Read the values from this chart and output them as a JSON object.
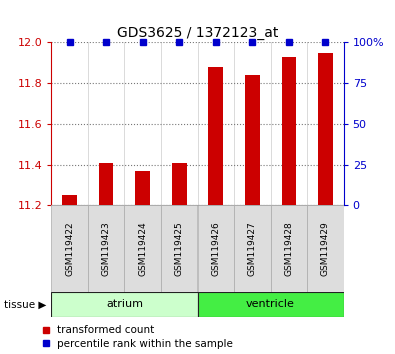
{
  "title": "GDS3625 / 1372123_at",
  "samples": [
    "GSM119422",
    "GSM119423",
    "GSM119424",
    "GSM119425",
    "GSM119426",
    "GSM119427",
    "GSM119428",
    "GSM119429"
  ],
  "red_values": [
    11.25,
    11.41,
    11.37,
    11.41,
    11.88,
    11.84,
    11.93,
    11.95
  ],
  "blue_values": [
    100,
    100,
    100,
    100,
    100,
    100,
    100,
    100
  ],
  "ylim_left": [
    11.2,
    12.0
  ],
  "ylim_right": [
    0,
    100
  ],
  "yticks_left": [
    11.2,
    11.4,
    11.6,
    11.8,
    12.0
  ],
  "yticks_right": [
    0,
    25,
    50,
    75,
    100
  ],
  "ytick_labels_right": [
    "0",
    "25",
    "50",
    "75",
    "100%"
  ],
  "bar_color": "#cc0000",
  "dot_color": "#0000cc",
  "grid_color": "#777777",
  "tissue_groups": [
    {
      "label": "atrium",
      "start": 0,
      "end": 4,
      "color": "#ccffcc"
    },
    {
      "label": "ventricle",
      "start": 4,
      "end": 8,
      "color": "#44ee44"
    }
  ],
  "legend_red": "transformed count",
  "legend_blue": "percentile rank within the sample",
  "bar_width": 0.4,
  "baseline": 11.2,
  "figsize": [
    3.95,
    3.54
  ],
  "dpi": 100,
  "sample_box_color": "#dddddd",
  "sample_box_edge": "#aaaaaa"
}
